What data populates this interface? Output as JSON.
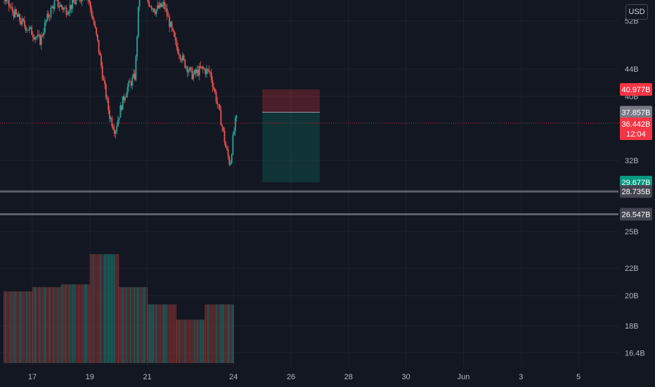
{
  "chart_data": {
    "type": "candlestick",
    "x_axis": {
      "tick_labels": [
        "17",
        "19",
        "21",
        "24",
        "26",
        "28",
        "30",
        "Jun",
        "3",
        "5"
      ],
      "tick_days": [
        17,
        19,
        21,
        24,
        26,
        28,
        30,
        32,
        34,
        36
      ]
    },
    "y_axis": {
      "scale": "log",
      "tick_labels": [
        "52B",
        "44B",
        "40B",
        "32B",
        "25B",
        "22B",
        "20B",
        "18B",
        "16.4B"
      ],
      "tick_values": [
        52,
        44,
        40,
        32,
        25,
        22,
        20,
        18,
        16.4
      ],
      "unit": "USD"
    },
    "price_series": [
      {
        "x": 16.0,
        "y": 56.5
      },
      {
        "x": 16.3,
        "y": 54.0
      },
      {
        "x": 16.6,
        "y": 52.0
      },
      {
        "x": 16.9,
        "y": 50.5
      },
      {
        "x": 17.1,
        "y": 49.5
      },
      {
        "x": 17.3,
        "y": 48.5
      },
      {
        "x": 17.5,
        "y": 52.0
      },
      {
        "x": 17.8,
        "y": 55.5
      },
      {
        "x": 18.2,
        "y": 54.0
      },
      {
        "x": 18.6,
        "y": 56.0
      },
      {
        "x": 18.9,
        "y": 57.5
      },
      {
        "x": 19.1,
        "y": 53.0
      },
      {
        "x": 19.3,
        "y": 48.0
      },
      {
        "x": 19.5,
        "y": 42.0
      },
      {
        "x": 19.7,
        "y": 37.5
      },
      {
        "x": 19.9,
        "y": 35.5
      },
      {
        "x": 20.1,
        "y": 38.5
      },
      {
        "x": 20.3,
        "y": 41.0
      },
      {
        "x": 20.6,
        "y": 43.0
      },
      {
        "x": 20.75,
        "y": 58.0
      },
      {
        "x": 21.0,
        "y": 56.0
      },
      {
        "x": 21.3,
        "y": 54.0
      },
      {
        "x": 21.6,
        "y": 55.0
      },
      {
        "x": 22.0,
        "y": 48.0
      },
      {
        "x": 22.3,
        "y": 45.0
      },
      {
        "x": 22.6,
        "y": 43.0
      },
      {
        "x": 22.9,
        "y": 44.0
      },
      {
        "x": 23.2,
        "y": 43.5
      },
      {
        "x": 23.4,
        "y": 40.0
      },
      {
        "x": 23.6,
        "y": 36.5
      },
      {
        "x": 23.75,
        "y": 33.5
      },
      {
        "x": 23.9,
        "y": 31.5
      },
      {
        "x": 24.0,
        "y": 34.5
      },
      {
        "x": 24.1,
        "y": 36.9
      }
    ],
    "volume_profile": [
      {
        "x_start": 16.0,
        "x_end": 17.0,
        "level": 20.3
      },
      {
        "x_start": 17.0,
        "x_end": 18.0,
        "level": 20.6
      },
      {
        "x_start": 18.0,
        "x_end": 19.0,
        "level": 20.8
      },
      {
        "x_start": 19.0,
        "x_end": 20.0,
        "level": 23.1
      },
      {
        "x_start": 20.0,
        "x_end": 21.0,
        "level": 20.6
      },
      {
        "x_start": 21.0,
        "x_end": 22.0,
        "level": 19.4
      },
      {
        "x_start": 22.0,
        "x_end": 23.0,
        "level": 18.4
      },
      {
        "x_start": 23.0,
        "x_end": 24.0,
        "level": 19.4
      }
    ],
    "position_tool": {
      "x_start": 25.0,
      "x_end": 27.0,
      "stop": 40.977,
      "entry": 37.857,
      "target": 29.677
    },
    "horizontal_lines": [
      28.735,
      26.547
    ],
    "current_price": 36.442,
    "price_labels": [
      {
        "text": "40.977B",
        "value": 40.977,
        "color": "#f23645"
      },
      {
        "text": "37.857B",
        "value": 37.857,
        "color": "#787b86"
      },
      {
        "text": "36.442B",
        "value": 36.442,
        "color": "#f23645",
        "sub": "12:04"
      },
      {
        "text": "29.677B",
        "value": 29.677,
        "color": "#089981"
      },
      {
        "text": "28.735B",
        "value": 28.735,
        "color": "#434651"
      },
      {
        "text": "26.547B",
        "value": 26.547,
        "color": "#434651"
      }
    ],
    "grid": true,
    "colors": {
      "background": "#131722",
      "up": "#26a69a",
      "down": "#ef5350",
      "grid": "#1e222d",
      "axis_text": "#b2b5be"
    }
  }
}
